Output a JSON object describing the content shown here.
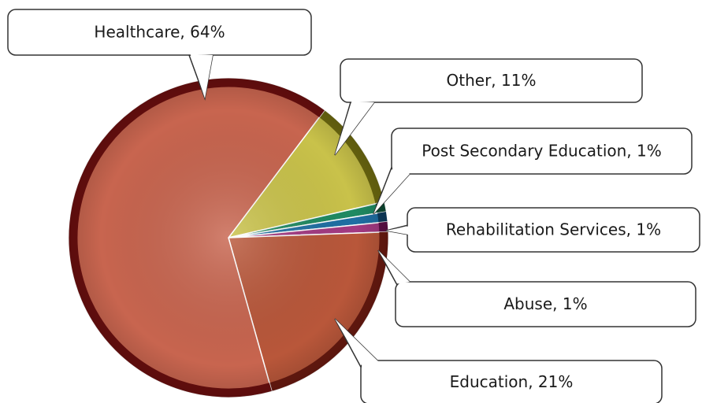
{
  "chart_data": {
    "type": "pie",
    "values": [
      11,
      1,
      1,
      1,
      21,
      64
    ],
    "value_labels": [
      "Other, 11%",
      "Post Secondary Education, 1%",
      "Rehabilitation Services, 1%",
      "Abuse, 1%",
      "Education, 21%",
      "Healthcare, 64%"
    ],
    "colors": [
      "#c9c24a",
      "#1f8a62",
      "#1f6fa3",
      "#a33a82",
      "#b9573a",
      "#c8654f"
    ],
    "edge_colors": [
      "#6e6a10",
      "#0e4a33",
      "#0d3c5e",
      "#5e1048",
      "#6a1a10",
      "#6b0f0f"
    ]
  }
}
